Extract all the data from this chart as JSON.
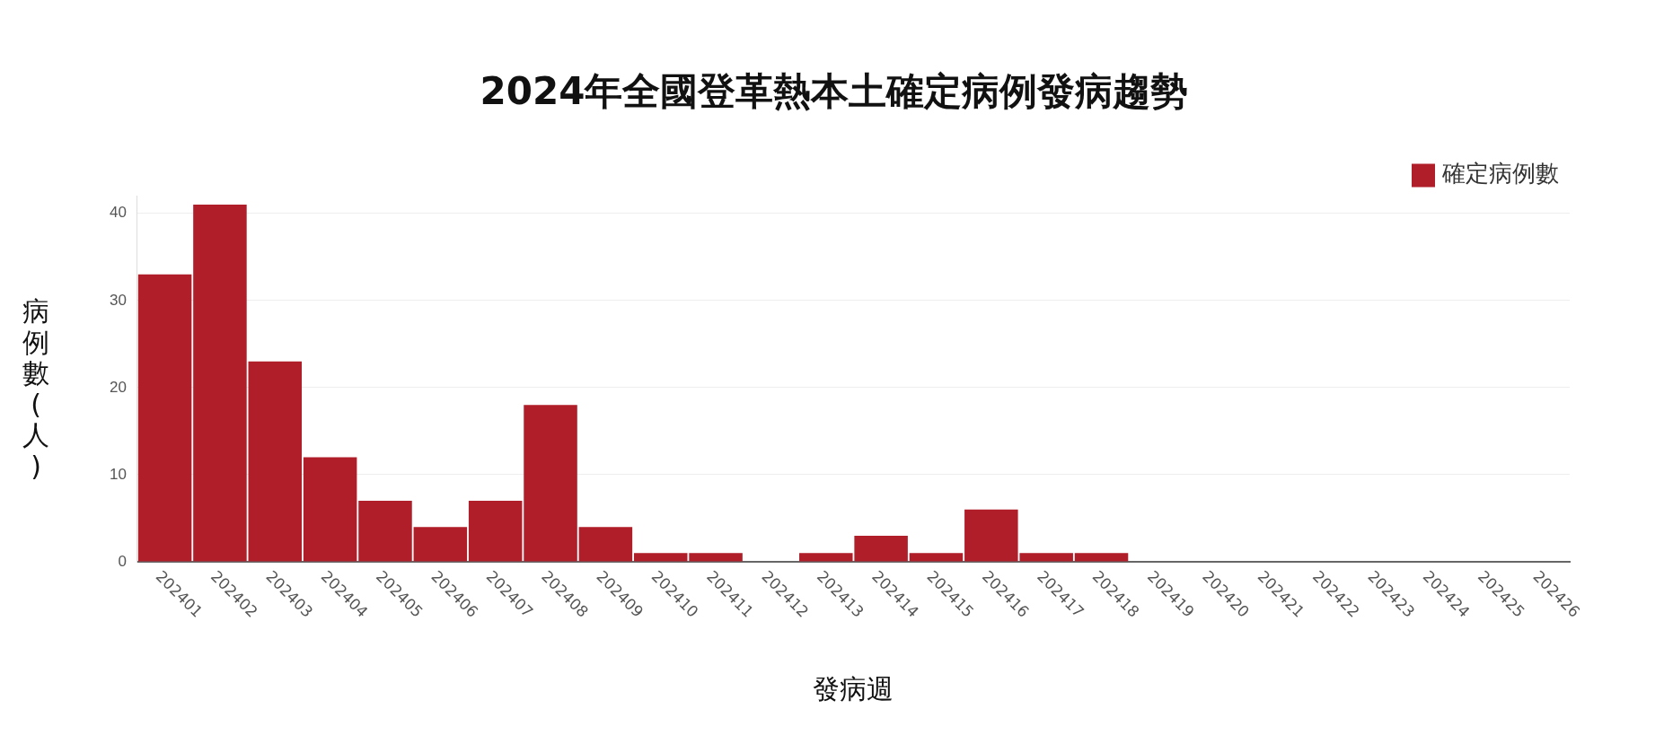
{
  "chart_data": {
    "type": "bar",
    "title": "2024年全國登革熱本土確定病例發病趨勢",
    "xlabel": "發病週",
    "ylabel": "病例數(人)",
    "categories": [
      "202401",
      "202402",
      "202403",
      "202404",
      "202405",
      "202406",
      "202407",
      "202408",
      "202409",
      "202410",
      "202411",
      "202412",
      "202413",
      "202414",
      "202415",
      "202416",
      "202417",
      "202418",
      "202419",
      "202420",
      "202421",
      "202422",
      "202423",
      "202424",
      "202425",
      "202426"
    ],
    "series": [
      {
        "name": "確定病例數",
        "color": "#b01e2a",
        "values": [
          33,
          41,
          23,
          12,
          7,
          4,
          7,
          18,
          4,
          1,
          1,
          0,
          1,
          3,
          1,
          6,
          1,
          1,
          0,
          0,
          0,
          0,
          0,
          0,
          0,
          0
        ]
      }
    ],
    "ylim": [
      0,
      42
    ],
    "yticks": [
      0,
      10,
      20,
      30,
      40
    ],
    "grid": "y",
    "legend": "top right"
  }
}
